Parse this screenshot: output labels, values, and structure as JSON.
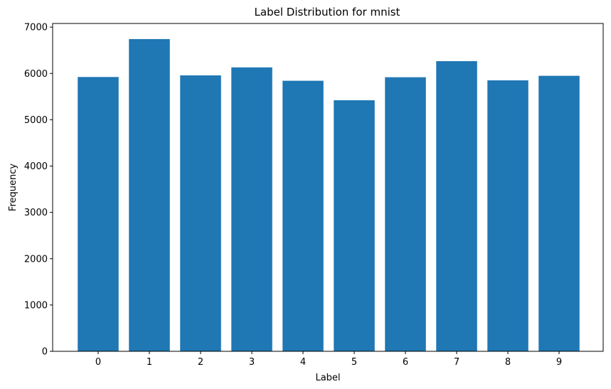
{
  "chart_data": {
    "type": "bar",
    "title": "Label Distribution for mnist",
    "xlabel": "Label",
    "ylabel": "Frequency",
    "categories": [
      "0",
      "1",
      "2",
      "3",
      "4",
      "5",
      "6",
      "7",
      "8",
      "9"
    ],
    "values": [
      5923,
      6742,
      5958,
      6131,
      5842,
      5421,
      5918,
      6265,
      5851,
      5949
    ],
    "ylim": [
      0,
      7079
    ],
    "yticks": [
      0,
      1000,
      2000,
      3000,
      4000,
      5000,
      6000,
      7000
    ],
    "ytick_labels": [
      "0",
      "1000",
      "2000",
      "3000",
      "4000",
      "5000",
      "6000",
      "7000"
    ],
    "grid": false,
    "bar_color": "#1f77b4"
  }
}
